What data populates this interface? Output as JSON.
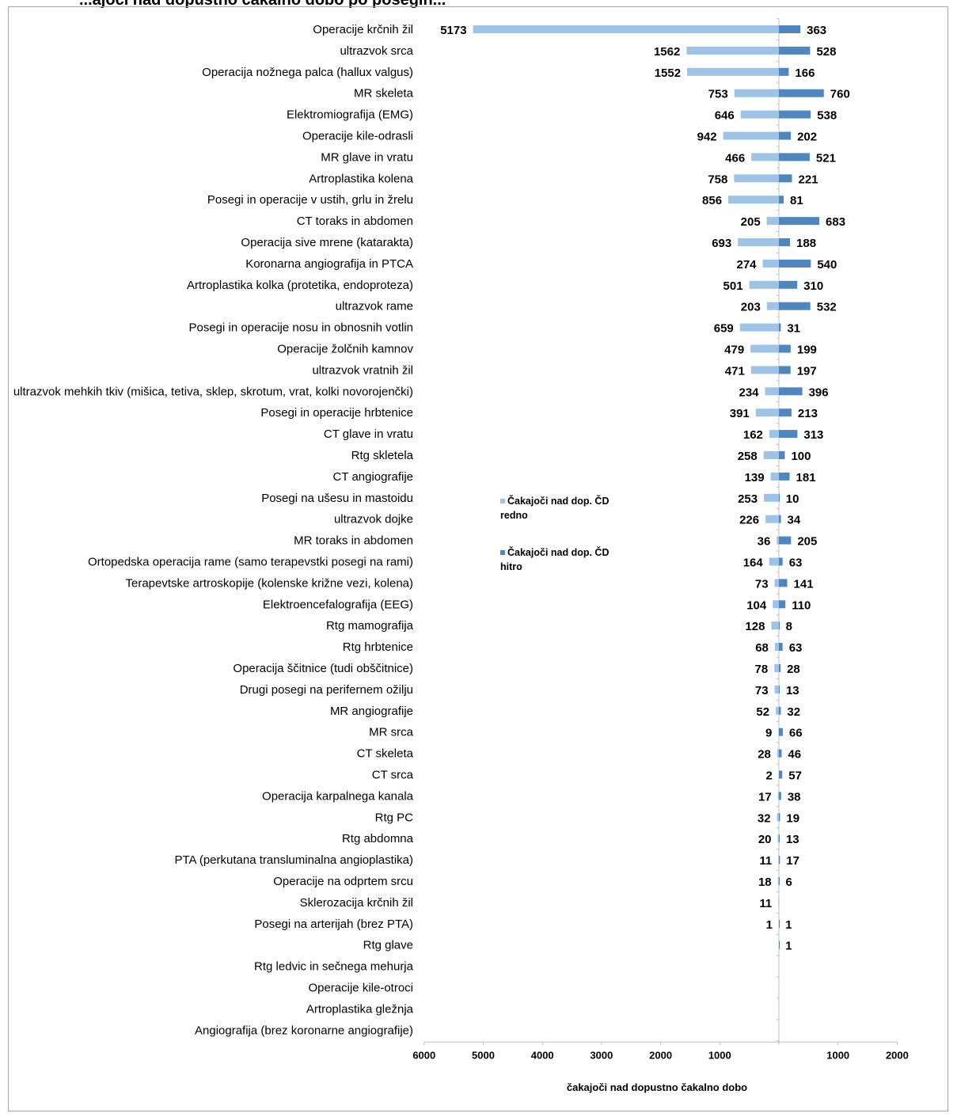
{
  "title": "...ajoči nad dopustno čakalno dobo po posegih... ",
  "chart_data": {
    "type": "bar",
    "orientation": "horizontal-diverging",
    "xlabel": "čakajoči nad dopustno čakalno dobo",
    "x_ticks_left": [
      "6000",
      "5000",
      "4000",
      "3000",
      "2000",
      "1000"
    ],
    "x_ticks_right": [
      "1000",
      "2000"
    ],
    "xlim_left": [
      0,
      6000
    ],
    "xlim_right": [
      0,
      2000
    ],
    "legend_position": "middle",
    "colors": {
      "redno": "#9dc3e6",
      "hitro": "#4f86c0"
    },
    "categories": [
      "Operacije krčnih žil",
      "ultrazvok srca",
      "Operacija nožnega palca (hallux valgus)",
      "MR skeleta",
      "Elektromiografija (EMG)",
      "Operacije kile-odrasli",
      "MR glave in vratu",
      "Artroplastika kolena",
      "Posegi in operacije v ustih, grlu in žrelu",
      "CT toraks in abdomen",
      "Operacija sive mrene (katarakta)",
      "Koronarna angiografija in PTCA",
      "Artroplastika kolka (protetika, endoproteza)",
      "ultrazvok rame",
      "Posegi in operacije nosu in obnosnih votlin",
      "Operacije žolčnih kamnov",
      "ultrazvok vratnih žil",
      "ultrazvok mehkih tkiv (mišica, tetiva, sklep, skrotum, vrat, kolki novorojenčki)",
      "Posegi in operacije hrbtenice",
      "CT glave in vratu",
      "Rtg skletela",
      "CT angiografije",
      "Posegi na ušesu in mastoidu",
      "ultrazvok dojke",
      "MR toraks in abdomen",
      "Ortopedska operacija rame (samo terapevstki posegi na rami)",
      "Terapevtske artroskopije (kolenske križne vezi, kolena)",
      "Elektroencefalografija (EEG)",
      "Rtg mamografija",
      "Rtg hrbtenice",
      "Operacija ščitnice (tudi obščitnice)",
      "Drugi posegi na perifernem ožilju",
      "MR angiografije",
      "MR srca",
      "CT skeleta",
      "CT srca",
      "Operacija karpalnega kanala",
      "Rtg PC",
      "Rtg abdomna",
      "PTA (perkutana transluminalna angioplastika)",
      "Operacije na odprtem srcu",
      "Sklerozacija krčnih žil",
      "Posegi na arterijah (brez PTA)",
      "Rtg glave",
      "Rtg ledvic in sečnega mehurja",
      "Operacije kile-otroci",
      "Artroplastika gležnja",
      "Angiografija (brez koronarne angiografije)"
    ],
    "series": [
      {
        "name": "Čakajoči nad dop. ČD redno",
        "side": "left",
        "values": [
          5173,
          1562,
          1552,
          753,
          646,
          942,
          466,
          758,
          856,
          205,
          693,
          274,
          501,
          203,
          659,
          479,
          471,
          234,
          391,
          162,
          258,
          139,
          253,
          226,
          36,
          164,
          73,
          104,
          128,
          68,
          78,
          73,
          52,
          9,
          28,
          2,
          17,
          32,
          20,
          11,
          18,
          11,
          1,
          null,
          null,
          null,
          null,
          null
        ]
      },
      {
        "name": "Čakajoči nad dop. ČD hitro",
        "side": "right",
        "values": [
          363,
          528,
          166,
          760,
          538,
          202,
          521,
          221,
          81,
          683,
          188,
          540,
          310,
          532,
          31,
          199,
          197,
          396,
          213,
          313,
          100,
          181,
          10,
          34,
          205,
          63,
          141,
          110,
          8,
          63,
          28,
          13,
          32,
          66,
          46,
          57,
          38,
          19,
          13,
          17,
          6,
          null,
          1,
          1,
          null,
          null,
          null,
          null
        ]
      }
    ]
  },
  "legend": {
    "redno_line1": "Čakajoči nad dop. ČD",
    "redno_line2": "redno",
    "hitro_line1": "Čakajoči nad dop. ČD",
    "hitro_line2": "hitro"
  }
}
